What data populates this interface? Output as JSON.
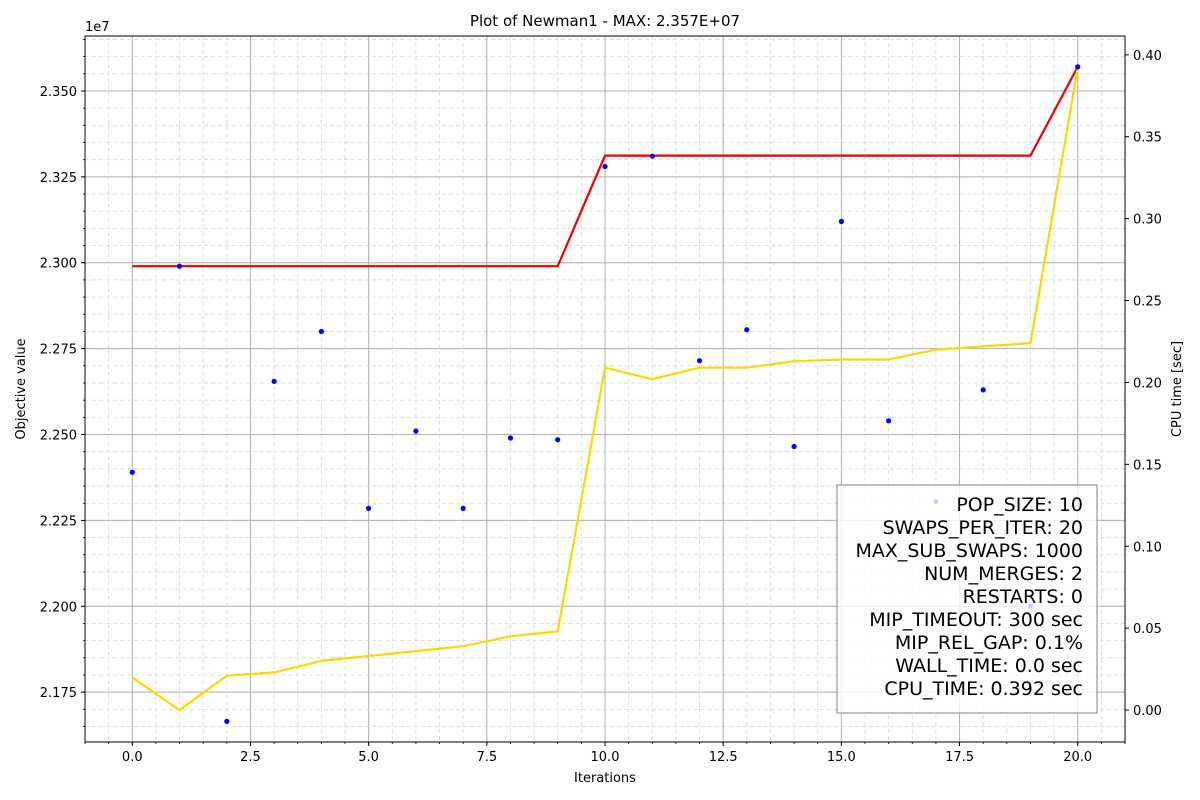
{
  "chart_data": {
    "type": "line",
    "title": "Plot of Newman1 - MAX: 2.357E+07",
    "xlabel": "Iterations",
    "ylabel": "Objective value",
    "y2label": "CPU time [sec]",
    "y_offset_text": "1e7",
    "y_scale": 10000000,
    "xlim": [
      -1,
      21
    ],
    "ylim": [
      21605000,
      23660000
    ],
    "y2lim": [
      -0.0195,
      0.4115
    ],
    "grid": true,
    "x_ticks": [
      0,
      2.5,
      5,
      7.5,
      10,
      12.5,
      15,
      17.5,
      20
    ],
    "x_tick_labels": [
      "0.0",
      "2.5",
      "5.0",
      "7.5",
      "10.0",
      "12.5",
      "15.0",
      "17.5",
      "20.0"
    ],
    "y_ticks": [
      21750000,
      22000000,
      22250000,
      22500000,
      22750000,
      23000000,
      23250000,
      23500000
    ],
    "y_tick_labels": [
      "2.175",
      "2.200",
      "2.225",
      "2.250",
      "2.275",
      "2.300",
      "2.325",
      "2.350"
    ],
    "y2_ticks": [
      0,
      0.05,
      0.1,
      0.15,
      0.2,
      0.25,
      0.3,
      0.35,
      0.4
    ],
    "y2_tick_labels": [
      "0.00",
      "0.05",
      "0.10",
      "0.15",
      "0.20",
      "0.25",
      "0.30",
      "0.35",
      "0.40"
    ],
    "series": [
      {
        "kind": "scatter",
        "axis": "left",
        "color": "#0000ff",
        "x": [
          0,
          1,
          2,
          3,
          4,
          5,
          6,
          7,
          8,
          9,
          10,
          11,
          12,
          13,
          14,
          15,
          16,
          17,
          18,
          19,
          20
        ],
        "values": [
          22390000,
          22990000,
          21665000,
          22655000,
          22800000,
          22285000,
          22510000,
          22285000,
          22490000,
          22485000,
          23280000,
          23310000,
          22715000,
          22805000,
          22465000,
          23120000,
          22540000,
          22305000,
          22630000,
          22000000,
          23570000
        ]
      },
      {
        "kind": "line",
        "axis": "left",
        "color": "#ee0000",
        "x": [
          0,
          1,
          2,
          3,
          4,
          5,
          6,
          7,
          8,
          9,
          10,
          11,
          12,
          13,
          14,
          15,
          16,
          17,
          18,
          19,
          20
        ],
        "values": [
          22990000,
          22990000,
          22990000,
          22990000,
          22990000,
          22990000,
          22990000,
          22990000,
          22990000,
          22990000,
          23312000,
          23312000,
          23312000,
          23312000,
          23312000,
          23312000,
          23312000,
          23312000,
          23312000,
          23312000,
          23570000
        ]
      },
      {
        "kind": "line",
        "axis": "right",
        "color": "#ffd700",
        "x": [
          0,
          1,
          2,
          3,
          4,
          5,
          6,
          7,
          8,
          9,
          10,
          11,
          12,
          13,
          14,
          15,
          16,
          17,
          18,
          19,
          20
        ],
        "values": [
          0.02,
          0.0,
          0.021,
          0.023,
          0.03,
          0.033,
          0.036,
          0.039,
          0.045,
          0.048,
          0.209,
          0.202,
          0.209,
          0.209,
          0.213,
          0.214,
          0.214,
          0.22,
          0.222,
          0.224,
          0.392
        ]
      }
    ]
  },
  "info_box": {
    "lines": [
      "POP_SIZE: 10",
      "SWAPS_PER_ITER: 20",
      "MAX_SUB_SWAPS: 1000",
      "NUM_MERGES: 2",
      "RESTARTS: 0",
      "MIP_TIMEOUT: 300 sec",
      "MIP_REL_GAP: 0.1%",
      "WALL_TIME: 0.0 sec",
      "CPU_TIME: 0.392 sec"
    ]
  }
}
